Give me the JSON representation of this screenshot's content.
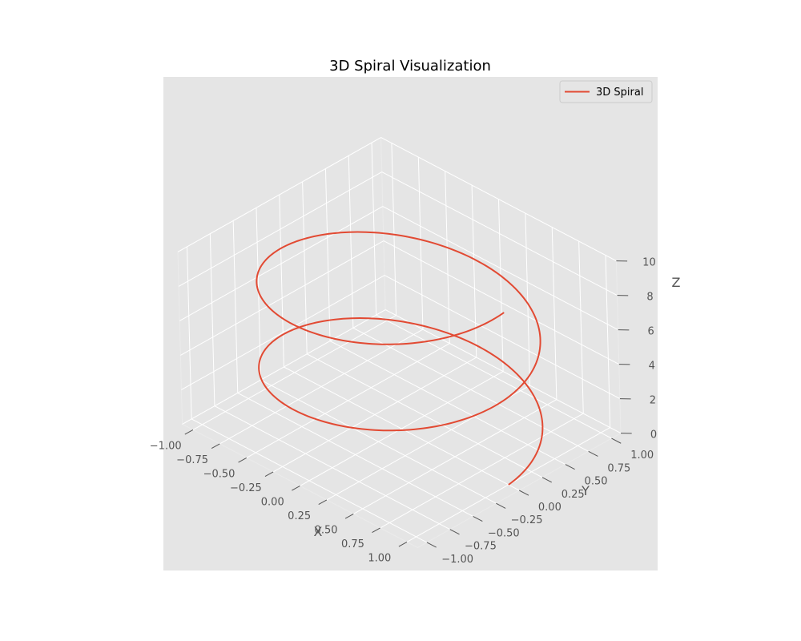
{
  "chart_data": {
    "type": "line",
    "title": "3D Spiral Visualization",
    "xlabel": "X",
    "ylabel": "Y",
    "zlabel": "Z",
    "xlim": [
      -1.1,
      1.1
    ],
    "ylim": [
      -1.1,
      1.1
    ],
    "zlim": [
      0,
      10
    ],
    "x_ticks": [
      "−1.00",
      "−0.75",
      "−0.50",
      "−0.25",
      "0.00",
      "0.25",
      "0.50",
      "0.75",
      "1.00"
    ],
    "y_ticks": [
      "−1.00",
      "−0.75",
      "−0.50",
      "−0.25",
      "0.00",
      "0.25",
      "0.50",
      "0.75",
      "1.00"
    ],
    "z_ticks": [
      "0",
      "2",
      "4",
      "6",
      "8",
      "10"
    ],
    "grid": true,
    "legend": "top-right",
    "series": [
      {
        "name": "3D Spiral",
        "color": "#E24A33",
        "equation": "x = cos(t), y = sin(t), z = 10·t/(4π), t from 0 to 4π",
        "t_start": 0,
        "t_end": 12.566,
        "z_start": 0,
        "z_end": 10
      }
    ],
    "colors": {
      "pane": "#E5E5E5",
      "panel": "#E5E5E5",
      "grid": "#FFFFFF",
      "tick_text": "#555555"
    }
  }
}
